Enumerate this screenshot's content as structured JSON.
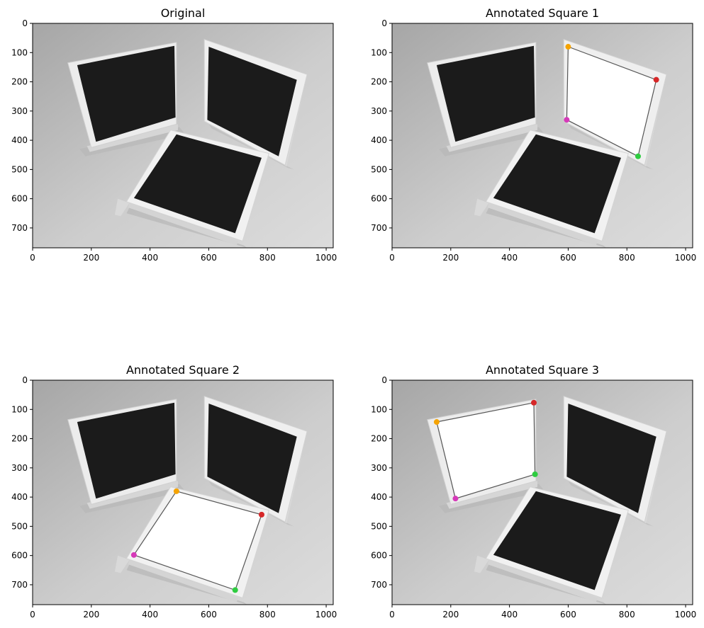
{
  "chart_data": [
    {
      "type": "image",
      "title": "Original",
      "xlim": [
        0,
        1024
      ],
      "ylim": [
        768,
        0
      ],
      "xticks": [
        0,
        200,
        400,
        600,
        800,
        1000
      ],
      "yticks": [
        0,
        100,
        200,
        300,
        400,
        500,
        600,
        700
      ],
      "highlight": null
    },
    {
      "type": "image",
      "title": "Annotated Square 1",
      "xlim": [
        0,
        1024
      ],
      "ylim": [
        768,
        0
      ],
      "xticks": [
        0,
        200,
        400,
        600,
        800,
        1000
      ],
      "yticks": [
        0,
        100,
        200,
        300,
        400,
        500,
        600,
        700
      ],
      "highlight": "right",
      "corners": [
        {
          "x": 600,
          "y": 80,
          "color": "#f5a300"
        },
        {
          "x": 900,
          "y": 193,
          "color": "#d62728"
        },
        {
          "x": 838,
          "y": 455,
          "color": "#2ecc40"
        },
        {
          "x": 595,
          "y": 330,
          "color": "#d63ab9"
        }
      ]
    },
    {
      "type": "image",
      "title": "Annotated Square 2",
      "xlim": [
        0,
        1024
      ],
      "ylim": [
        768,
        0
      ],
      "xticks": [
        0,
        200,
        400,
        600,
        800,
        1000
      ],
      "yticks": [
        0,
        100,
        200,
        300,
        400,
        500,
        600,
        700
      ],
      "highlight": "bottom",
      "corners": [
        {
          "x": 490,
          "y": 380,
          "color": "#f5a300"
        },
        {
          "x": 780,
          "y": 460,
          "color": "#d62728"
        },
        {
          "x": 690,
          "y": 718,
          "color": "#2ecc40"
        },
        {
          "x": 345,
          "y": 598,
          "color": "#d63ab9"
        }
      ]
    },
    {
      "type": "image",
      "title": "Annotated Square 3",
      "xlim": [
        0,
        1024
      ],
      "ylim": [
        768,
        0
      ],
      "xticks": [
        0,
        200,
        400,
        600,
        800,
        1000
      ],
      "yticks": [
        0,
        100,
        200,
        300,
        400,
        500,
        600,
        700
      ],
      "highlight": "left",
      "corners": [
        {
          "x": 152,
          "y": 143,
          "color": "#f5a300"
        },
        {
          "x": 483,
          "y": 77,
          "color": "#d62728"
        },
        {
          "x": 487,
          "y": 322,
          "color": "#2ecc40"
        },
        {
          "x": 216,
          "y": 405,
          "color": "#d63ab9"
        }
      ]
    }
  ]
}
